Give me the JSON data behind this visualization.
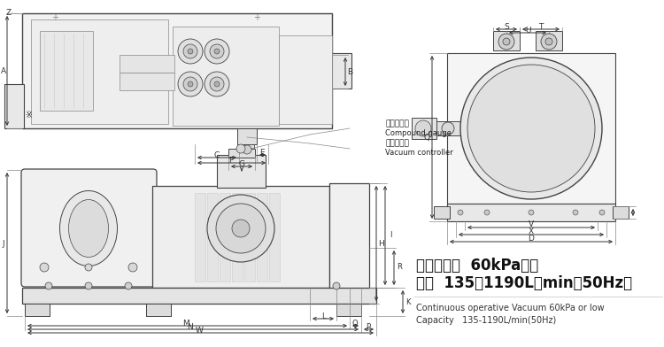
{
  "bg_color": "#ffffff",
  "lc": "#444444",
  "dc": "#333333",
  "tc": "#222222",
  "gc": "#888888",
  "title_zh1": "常见真空度  60kPa以下",
  "title_zh2": "流量  135－1190L／min（50Hz）",
  "caption1": "Continuous operative Vacuum 60kPa or low",
  "caption2": "Capacity   135-1190L/min(50Hz)",
  "label_cpd_zh": "真空压力表",
  "label_cpd_en": "Compound gauge",
  "label_vac_zh": "真空控制阀",
  "label_vac_en": "Vacuum controller"
}
